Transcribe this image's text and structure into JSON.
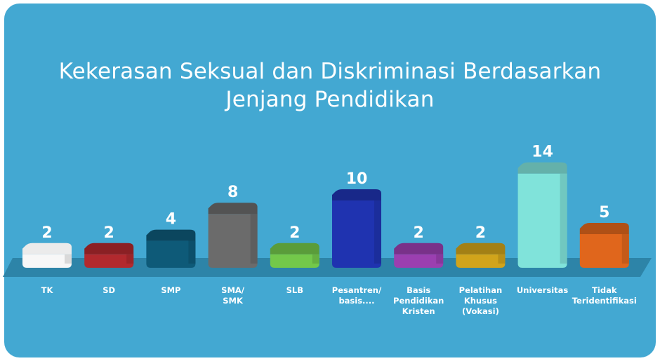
{
  "chart_data": {
    "type": "bar",
    "title": "Kekerasan Seksual dan Diskriminasi Berdasarkan Jenjang Pendidikan",
    "title_lines": [
      "Kekerasan Seksual dan Diskriminasi Berdasarkan",
      "Jenjang Pendidikan"
    ],
    "categories": [
      "TK",
      "SD",
      "SMP",
      "SMA/ SMK",
      "SLB",
      "Pesantren/ basis....",
      "Basis Pendidikan Kristen",
      "Pelatihan Khusus (Vokasi)",
      "Universitas",
      "Tidak Teridentifikasi"
    ],
    "category_lines": [
      [
        "TK"
      ],
      [
        "SD"
      ],
      [
        "SMP"
      ],
      [
        "SMA/",
        "SMK"
      ],
      [
        "SLB"
      ],
      [
        "Pesantren/",
        "basis...."
      ],
      [
        "Basis",
        "Pendidikan",
        "Kristen"
      ],
      [
        "Pelatihan",
        "Khusus",
        "(Vokasi)"
      ],
      [
        "Universitas"
      ],
      [
        "Tidak",
        "Teridentifikasi"
      ]
    ],
    "values": [
      2,
      2,
      4,
      8,
      2,
      10,
      2,
      2,
      14,
      5
    ],
    "bar_colors": [
      "#f7f7f7",
      "#b2292e",
      "#0e5a78",
      "#6b6b6b",
      "#73c84a",
      "#1f33b0",
      "#9b3fb0",
      "#d1a41b",
      "#80e3da",
      "#e0661c"
    ],
    "colors": {
      "background": "#43a8d2",
      "floor": "#2d84a8",
      "text": "#ffffff"
    },
    "xlabel": "",
    "ylabel": "",
    "ylim": [
      0,
      14
    ],
    "grid": false,
    "legend": "none"
  }
}
